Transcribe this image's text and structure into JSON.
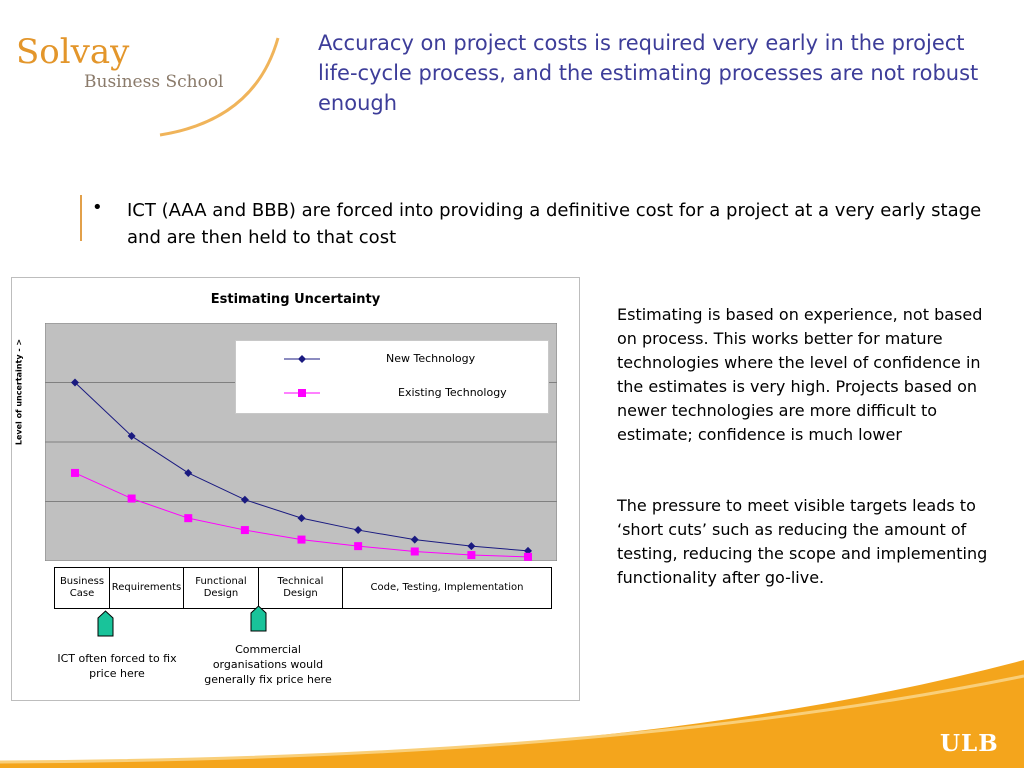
{
  "logo": {
    "name": "Solvay",
    "subtitle": "Business School"
  },
  "title": "Accuracy on project costs is required very early in the project life-cycle process, and the estimating processes are not robust enough",
  "bullet": "ICT (AAA and BBB) are forced into providing a definitive cost for a project at a very early stage and are then held to that cost",
  "chart_data": {
    "type": "line",
    "title": "Estimating Uncertainty",
    "ylabel": "Level of uncertainty - >",
    "xlabel": "",
    "x": [
      1,
      2,
      3,
      4,
      5,
      6,
      7,
      8,
      9
    ],
    "ylim": [
      0,
      4
    ],
    "grid": true,
    "legend_position": "top-right",
    "series": [
      {
        "name": "New Technology",
        "color": "#1a1a80",
        "marker": "diamond",
        "values": [
          3.0,
          2.1,
          1.48,
          1.03,
          0.72,
          0.52,
          0.36,
          0.25,
          0.17
        ]
      },
      {
        "name": "Existing Technology",
        "color": "#ff00ff",
        "marker": "square",
        "values": [
          1.48,
          1.05,
          0.72,
          0.52,
          0.36,
          0.25,
          0.16,
          0.1,
          0.07
        ]
      }
    ]
  },
  "phases": [
    "Business Case",
    "Requirements",
    "Functional Design",
    "Technical Design",
    "Code, Testing, Implementation"
  ],
  "notes": {
    "ict": "ICT often forced to fix price here",
    "commercial": "Commercial organisations would generally fix price here"
  },
  "side": {
    "p1": "Estimating is based on experience, not based on process.  This works better for mature technologies where the level of confidence in the estimates is very high.  Projects based on newer technologies are more difficult to estimate; confidence is much lower",
    "p2": "The pressure to meet visible targets leads to ‘short cuts’ such as reducing the amount of testing, reducing the scope and implementing functionality after go-live."
  },
  "footer_logo": "ULB",
  "colors": {
    "title": "#3d3d99",
    "accent": "#e3962b",
    "plot_bg": "#c0c0c0",
    "marker_green": "#19c39a"
  }
}
